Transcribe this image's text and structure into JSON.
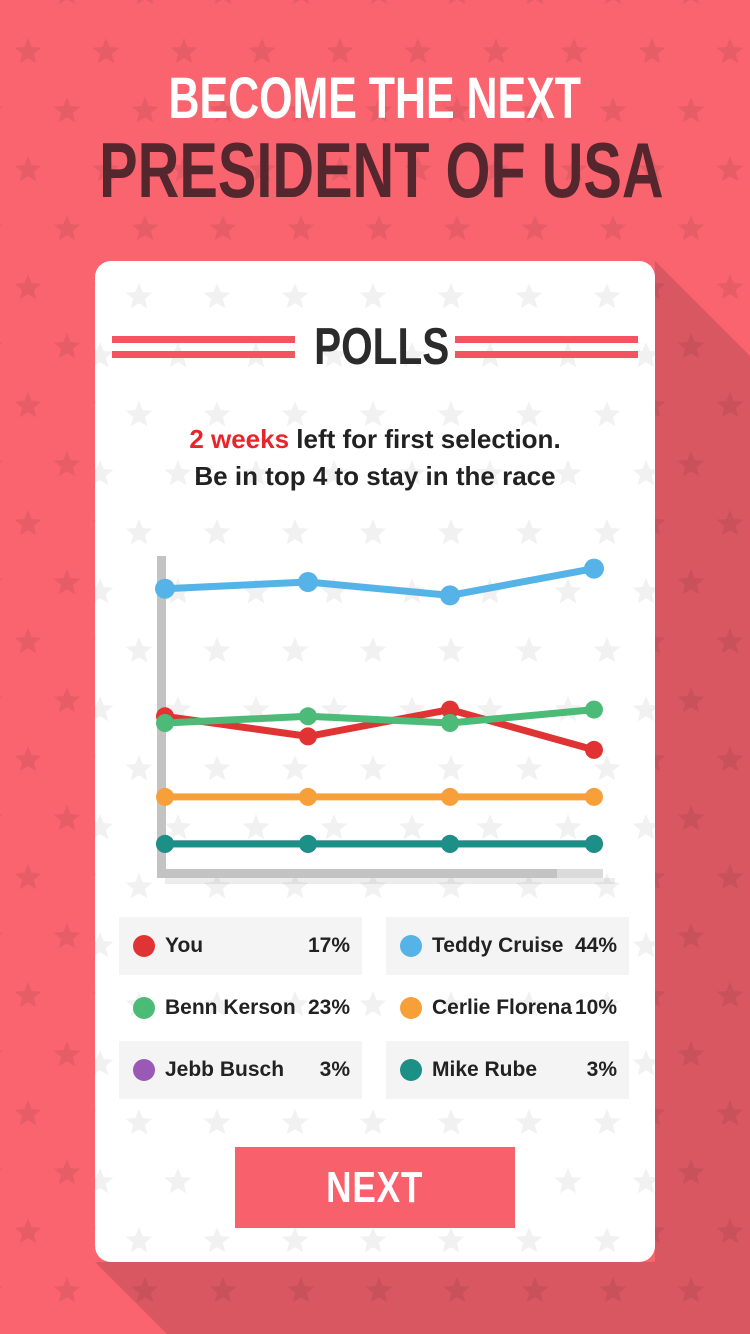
{
  "header": {
    "line1": "BECOME THE NEXT",
    "line2": "PRESIDENT OF USA"
  },
  "card": {
    "title": "POLLS",
    "subtitle_highlight": "2 weeks",
    "subtitle_rest": " left for first selection.",
    "subtitle_line2": "Be in top 4 to stay in the race",
    "next_label": "NEXT"
  },
  "chart_data": {
    "type": "line",
    "x": [
      1,
      2,
      3,
      4
    ],
    "title": "",
    "xlabel": "",
    "ylabel": "",
    "ylim": [
      0,
      48
    ],
    "grid": false,
    "axes_style": "bare gray L-shaped axis, no ticks or labels",
    "legend_position": "below chart, two-column grid",
    "series": [
      {
        "name": "You",
        "color": "#E03434",
        "pct_label": "17%",
        "final_pct": 17,
        "values": [
          22,
          19,
          23,
          17
        ]
      },
      {
        "name": "Teddy Cruise",
        "color": "#55B3E8",
        "pct_label": "44%",
        "final_pct": 44,
        "values": [
          41,
          42,
          40,
          44
        ]
      },
      {
        "name": "Benn Kerson",
        "color": "#4CBB77",
        "pct_label": "23%",
        "final_pct": 23,
        "values": [
          21,
          22,
          21,
          23
        ]
      },
      {
        "name": "Cerlie Florena",
        "color": "#F7A03A",
        "pct_label": "10%",
        "final_pct": 10,
        "values": [
          10,
          10,
          10,
          10
        ]
      },
      {
        "name": "Jebb Busch",
        "color": "#9B59B6",
        "pct_label": "3%",
        "final_pct": 3,
        "values": [
          3,
          3,
          3,
          3
        ]
      },
      {
        "name": "Mike Rube",
        "color": "#1C8F86",
        "pct_label": "3%",
        "final_pct": 3,
        "values": [
          3,
          3,
          3,
          3
        ]
      }
    ],
    "notes": "Jebb Busch's purple line is not visible: it coincides with Mike Rube's teal line (both 3%) and is drawn beneath it."
  },
  "colors": {
    "background": "#F9646F",
    "title_primary": "#FFFFFF",
    "title_secondary": "#54262D",
    "heading_text": "#2B2B2B",
    "double_line_red": "#F4545F",
    "alert_red": "#E8252B",
    "body_text": "#212121",
    "axis_gray": "#C3C3C4",
    "legend_row_bg": "#F4F4F4",
    "button_bg": "#F8606B",
    "button_text": "#FFFFFF"
  }
}
